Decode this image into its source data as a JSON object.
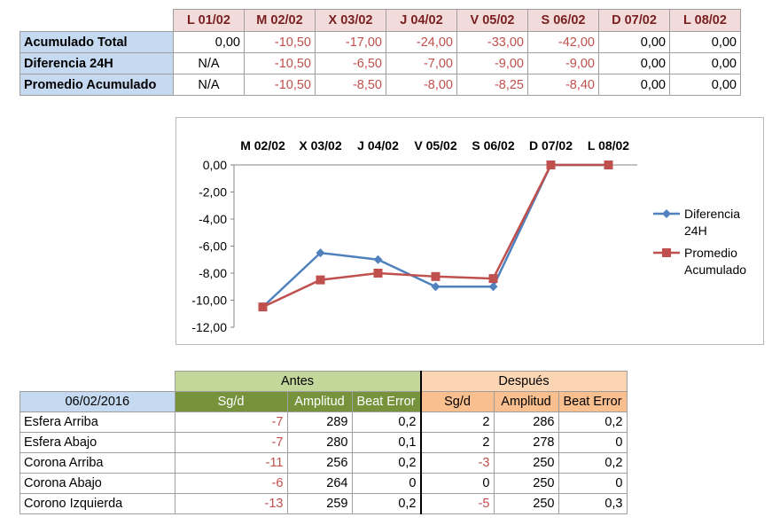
{
  "summary": {
    "days": [
      "L 01/02",
      "M 02/02",
      "X 03/02",
      "J 04/02",
      "V 05/02",
      "S 06/02",
      "D 07/02",
      "L 08/02"
    ],
    "rows": [
      {
        "label": "Acumulado Total",
        "values": [
          "0,00",
          "-10,50",
          "-17,00",
          "-24,00",
          "-33,00",
          "-42,00",
          "0,00",
          "0,00"
        ]
      },
      {
        "label": "Diferencia 24H",
        "values": [
          "N/A",
          "-10,50",
          "-6,50",
          "-7,00",
          "-9,00",
          "-9,00",
          "0,00",
          "0,00"
        ]
      },
      {
        "label": "Promedio Acumulado",
        "values": [
          "N/A",
          "-10,50",
          "-8,50",
          "-8,00",
          "-8,25",
          "-8,40",
          "0,00",
          "0,00"
        ]
      }
    ]
  },
  "chart_data": {
    "type": "line",
    "categories": [
      "M 02/02",
      "X 03/02",
      "J 04/02",
      "V 05/02",
      "S 06/02",
      "D 07/02",
      "L 08/02"
    ],
    "series": [
      {
        "name": "Diferencia 24H",
        "values": [
          -10.5,
          -6.5,
          -7.0,
          -9.0,
          -9.0,
          0,
          0
        ],
        "color": "#4f81bd",
        "marker": "diamond"
      },
      {
        "name": "Promedio Acumulado",
        "values": [
          -10.5,
          -8.5,
          -8.0,
          -8.25,
          -8.4,
          0,
          0
        ],
        "color": "#c0504d",
        "marker": "square"
      }
    ],
    "yticks": [
      "0,00",
      "-2,00",
      "-4,00",
      "-6,00",
      "-8,00",
      "-10,00",
      "-12,00"
    ],
    "ylim": [
      -12,
      0
    ],
    "x_axis_position": "top",
    "legend": "right",
    "legend_lines": [
      [
        "Diferencia",
        "24H"
      ],
      [
        "Promedio",
        "Acumulado"
      ]
    ],
    "grid": false
  },
  "watch": {
    "antes_label": "Antes",
    "despues_label": "Después",
    "date": "06/02/2016",
    "subheaders": [
      "Sg/d",
      "Amplitud",
      "Beat Error",
      "Sg/d",
      "Amplitud",
      "Beat Error"
    ],
    "rows": [
      {
        "label": "Esfera Arriba",
        "values": [
          "-7",
          "289",
          "0,2",
          "2",
          "286",
          "0,2"
        ]
      },
      {
        "label": "Esfera Abajo",
        "values": [
          "-7",
          "280",
          "0,1",
          "2",
          "278",
          "0"
        ]
      },
      {
        "label": "Corona Arriba",
        "values": [
          "-11",
          "256",
          "0,2",
          "-3",
          "250",
          "0,2"
        ]
      },
      {
        "label": "Corona Abajo",
        "values": [
          "-6",
          "264",
          "0",
          "0",
          "250",
          "0"
        ]
      },
      {
        "label": "Corono Izquierda",
        "values": [
          "-13",
          "259",
          "0,2",
          "-5",
          "250",
          "0,3"
        ]
      }
    ]
  }
}
